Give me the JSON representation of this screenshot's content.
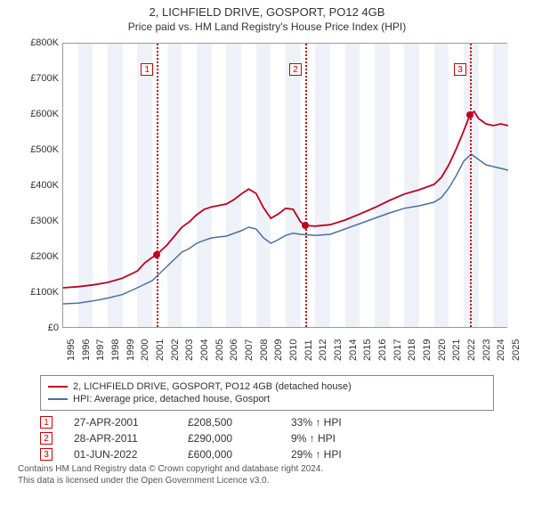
{
  "title": "2, LICHFIELD DRIVE, GOSPORT, PO12 4GB",
  "subtitle": "Price paid vs. HM Land Registry's House Price Index (HPI)",
  "chart": {
    "type": "line",
    "x_start_year": 1995,
    "x_end_year": 2025,
    "xticks": [
      1995,
      1996,
      1997,
      1998,
      1999,
      2000,
      2001,
      2002,
      2003,
      2004,
      2005,
      2006,
      2007,
      2008,
      2009,
      2010,
      2011,
      2012,
      2013,
      2014,
      2015,
      2016,
      2017,
      2018,
      2019,
      2020,
      2021,
      2022,
      2023,
      2024,
      2025
    ],
    "xtick_labels": [
      "1995",
      "1996",
      "1997",
      "1998",
      "1999",
      "2000",
      "2001",
      "2002",
      "2003",
      "2004",
      "2005",
      "2006",
      "2007",
      "2008",
      "2009",
      "2010",
      "2011",
      "2012",
      "2013",
      "2014",
      "2015",
      "2016",
      "2017",
      "2018",
      "2019",
      "2020",
      "2021",
      "2022",
      "2023",
      "2024",
      "2025"
    ],
    "ylim": [
      0,
      800000
    ],
    "yticks": [
      0,
      100000,
      200000,
      300000,
      400000,
      500000,
      600000,
      700000,
      800000
    ],
    "ytick_labels": [
      "£0",
      "£100K",
      "£200K",
      "£300K",
      "£400K",
      "£500K",
      "£600K",
      "£700K",
      "£800K"
    ],
    "shaded_bands_years": [
      [
        1996,
        1997
      ],
      [
        1998,
        1999
      ],
      [
        2000,
        2001
      ],
      [
        2002,
        2003
      ],
      [
        2004,
        2005
      ],
      [
        2006,
        2007
      ],
      [
        2008,
        2009
      ],
      [
        2010,
        2011
      ],
      [
        2012,
        2013
      ],
      [
        2014,
        2015
      ],
      [
        2016,
        2017
      ],
      [
        2018,
        2019
      ],
      [
        2020,
        2021
      ],
      [
        2022,
        2023
      ],
      [
        2024,
        2025
      ]
    ],
    "shade_color": "#eef2f8",
    "border_color": "#999999",
    "background_color": "#ffffff",
    "tick_fontsize": 11,
    "series": [
      {
        "name": "HPI: Average price, detached house, Gosport",
        "color": "#4a6fa5",
        "line_width": 1.5,
        "points": [
          [
            1995,
            70000
          ],
          [
            1996,
            72000
          ],
          [
            1997,
            78000
          ],
          [
            1998,
            86000
          ],
          [
            1999,
            96000
          ],
          [
            2000,
            115000
          ],
          [
            2001,
            135000
          ],
          [
            2001.5,
            155000
          ],
          [
            2002,
            175000
          ],
          [
            2002.5,
            195000
          ],
          [
            2003,
            215000
          ],
          [
            2003.5,
            225000
          ],
          [
            2004,
            240000
          ],
          [
            2004.5,
            248000
          ],
          [
            2005,
            255000
          ],
          [
            2006,
            260000
          ],
          [
            2007,
            275000
          ],
          [
            2007.5,
            285000
          ],
          [
            2008,
            280000
          ],
          [
            2008.5,
            255000
          ],
          [
            2009,
            240000
          ],
          [
            2009.5,
            250000
          ],
          [
            2010,
            262000
          ],
          [
            2010.5,
            268000
          ],
          [
            2011,
            265000
          ],
          [
            2012,
            262000
          ],
          [
            2013,
            265000
          ],
          [
            2014,
            280000
          ],
          [
            2015,
            295000
          ],
          [
            2016,
            310000
          ],
          [
            2017,
            325000
          ],
          [
            2018,
            338000
          ],
          [
            2019,
            345000
          ],
          [
            2020,
            355000
          ],
          [
            2020.5,
            368000
          ],
          [
            2021,
            395000
          ],
          [
            2021.5,
            430000
          ],
          [
            2022,
            470000
          ],
          [
            2022.5,
            490000
          ],
          [
            2023,
            475000
          ],
          [
            2023.5,
            460000
          ],
          [
            2024,
            455000
          ],
          [
            2024.5,
            450000
          ],
          [
            2025,
            445000
          ]
        ]
      },
      {
        "name": "2, LICHFIELD DRIVE, GOSPORT, PO12 4GB (detached house)",
        "color": "#c00020",
        "line_width": 1.8,
        "points": [
          [
            1995,
            115000
          ],
          [
            1996,
            118000
          ],
          [
            1997,
            123000
          ],
          [
            1998,
            130000
          ],
          [
            1999,
            142000
          ],
          [
            2000,
            162000
          ],
          [
            2000.5,
            185000
          ],
          [
            2001,
            200000
          ],
          [
            2001.32,
            208500
          ],
          [
            2002,
            235000
          ],
          [
            2002.5,
            260000
          ],
          [
            2003,
            285000
          ],
          [
            2003.5,
            300000
          ],
          [
            2004,
            320000
          ],
          [
            2004.5,
            335000
          ],
          [
            2005,
            342000
          ],
          [
            2006,
            350000
          ],
          [
            2006.5,
            362000
          ],
          [
            2007,
            378000
          ],
          [
            2007.5,
            392000
          ],
          [
            2008,
            380000
          ],
          [
            2008.5,
            340000
          ],
          [
            2009,
            310000
          ],
          [
            2009.5,
            322000
          ],
          [
            2010,
            338000
          ],
          [
            2010.5,
            335000
          ],
          [
            2011,
            300000
          ],
          [
            2011.32,
            290000
          ],
          [
            2012,
            288000
          ],
          [
            2013,
            292000
          ],
          [
            2014,
            305000
          ],
          [
            2015,
            322000
          ],
          [
            2016,
            340000
          ],
          [
            2017,
            360000
          ],
          [
            2018,
            378000
          ],
          [
            2019,
            390000
          ],
          [
            2020,
            405000
          ],
          [
            2020.5,
            425000
          ],
          [
            2021,
            460000
          ],
          [
            2021.5,
            505000
          ],
          [
            2022,
            555000
          ],
          [
            2022.42,
            600000
          ],
          [
            2022.7,
            610000
          ],
          [
            2023,
            590000
          ],
          [
            2023.5,
            575000
          ],
          [
            2024,
            570000
          ],
          [
            2024.5,
            575000
          ],
          [
            2025,
            570000
          ]
        ]
      }
    ],
    "vlines": [
      {
        "year": 2001.32,
        "label": "1",
        "marker_top": 22
      },
      {
        "year": 2011.32,
        "label": "2",
        "marker_top": 22
      },
      {
        "year": 2022.42,
        "label": "3",
        "marker_top": 22
      }
    ],
    "sale_dots": [
      {
        "year": 2001.32,
        "value": 208500,
        "color": "#c00020"
      },
      {
        "year": 2011.32,
        "value": 290000,
        "color": "#c00020"
      },
      {
        "year": 2022.42,
        "value": 600000,
        "color": "#c00020"
      }
    ]
  },
  "legend": {
    "items": [
      {
        "color": "#c00020",
        "label": "2, LICHFIELD DRIVE, GOSPORT, PO12 4GB (detached house)"
      },
      {
        "color": "#4a6fa5",
        "label": "HPI: Average price, detached house, Gosport"
      }
    ]
  },
  "transactions": [
    {
      "marker": "1",
      "date": "27-APR-2001",
      "price": "£208,500",
      "pct": "33% ↑ HPI"
    },
    {
      "marker": "2",
      "date": "28-APR-2011",
      "price": "£290,000",
      "pct": "9% ↑ HPI"
    },
    {
      "marker": "3",
      "date": "01-JUN-2022",
      "price": "£600,000",
      "pct": "29% ↑ HPI"
    }
  ],
  "footer_line1": "Contains HM Land Registry data © Crown copyright and database right 2024.",
  "footer_line2": "This data is licensed under the Open Government Licence v3.0.",
  "marker_box_border": "#c00020"
}
